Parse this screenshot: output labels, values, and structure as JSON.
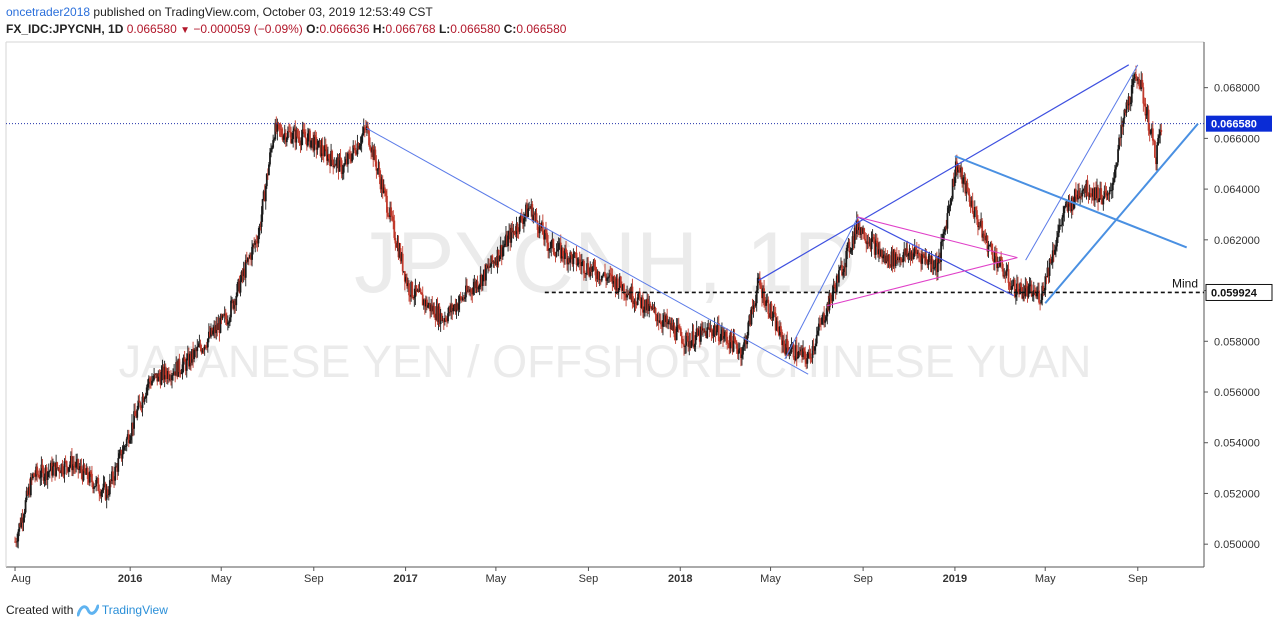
{
  "header": {
    "user": "oncetrader2018",
    "published_text": "published on TradingView.com, October 03, 2019 12:53:49 CST",
    "symbol": "FX_IDC:JPYCNH, 1D",
    "last": "0.066580",
    "change": "−0.000059 (−0.09%)",
    "o_label": "O:",
    "o_value": "0.066636",
    "h_label": "H:",
    "h_value": "0.066768",
    "l_label": "L:",
    "l_value": "0.066580",
    "c_label": "C:",
    "c_value": "0.066580"
  },
  "footer": {
    "created_with": "Created with",
    "brand": "TradingView"
  },
  "colors": {
    "up": "#1b1b1b",
    "down": "#c0392b",
    "trend": "#3f51e0",
    "trend_light": "#5b7be8",
    "channel": "#4a90e2",
    "magenta": "#e040c8",
    "price_line": "#2233aa",
    "price_tag": "#0a2cd6",
    "level_tag": "#111111",
    "watermark": "#ebebeb"
  },
  "chart_data": {
    "type": "line",
    "title": "FX_IDC:JPYCNH, 1D",
    "watermark_symbol": "JPYCNH, 1D",
    "watermark_name": "JAPANESE YEN / OFFSHORE CHINESE YUAN",
    "xlabel": "",
    "ylabel": "",
    "x_ticks": [
      "Aug",
      "2016",
      "May",
      "Sep",
      "2017",
      "May",
      "Sep",
      "2018",
      "May",
      "Sep",
      "2019",
      "May",
      "Sep"
    ],
    "y_ticks": [
      "0.050000",
      "0.052000",
      "0.054000",
      "0.056000",
      "0.058000",
      "0.060000",
      "0.062000",
      "0.064000",
      "0.066000",
      "0.068000"
    ],
    "ylim": [
      0.0491,
      0.0698
    ],
    "grid": false,
    "current_price": 0.06658,
    "current_price_label": "0.066580",
    "level": {
      "value": 0.059924,
      "label": "0.059924",
      "name": "Mind"
    },
    "x": [
      "2015-08-01",
      "2015-08-25",
      "2015-10-15",
      "2015-12-01",
      "2016-01-25",
      "2016-03-15",
      "2016-05-10",
      "2016-06-20",
      "2016-07-10",
      "2016-08-25",
      "2016-10-10",
      "2016-11-10",
      "2016-12-10",
      "2017-01-05",
      "2017-02-20",
      "2017-04-15",
      "2017-06-15",
      "2017-07-10",
      "2017-09-01",
      "2017-10-15",
      "2017-12-05",
      "2018-01-10",
      "2018-02-15",
      "2018-03-25",
      "2018-04-15",
      "2018-05-20",
      "2018-06-20",
      "2018-08-25",
      "2018-10-01",
      "2018-11-10",
      "2018-12-10",
      "2019-01-03",
      "2019-02-10",
      "2019-03-20",
      "2019-04-25",
      "2019-05-25",
      "2019-06-20",
      "2019-07-25",
      "2019-08-15",
      "2019-09-01",
      "2019-09-25",
      "2019-10-03"
    ],
    "values": [
      0.0501,
      0.0527,
      0.0532,
      0.052,
      0.0564,
      0.0571,
      0.059,
      0.0623,
      0.0663,
      0.066,
      0.0648,
      0.0664,
      0.0631,
      0.0601,
      0.0589,
      0.0606,
      0.0633,
      0.0618,
      0.0609,
      0.0602,
      0.0589,
      0.058,
      0.0585,
      0.0576,
      0.0603,
      0.0578,
      0.0573,
      0.0626,
      0.0612,
      0.0615,
      0.061,
      0.065,
      0.062,
      0.0601,
      0.0598,
      0.063,
      0.0641,
      0.0636,
      0.067,
      0.0686,
      0.0653,
      0.06658
    ],
    "annotations": [
      {
        "type": "trendline",
        "from": [
          "2016-11-10",
          0.0664
        ],
        "to": [
          "2018-06-20",
          0.0567
        ],
        "style": "trend_light"
      },
      {
        "type": "trendline",
        "from": [
          "2018-04-15",
          0.0604
        ],
        "to": [
          "2019-08-20",
          0.0689
        ],
        "style": "trend"
      },
      {
        "type": "trendline",
        "from": [
          "2019-01-01",
          0.0653
        ],
        "to": [
          "2019-11-05",
          0.0617
        ],
        "style": "channel"
      },
      {
        "type": "trendline",
        "from": [
          "2019-05-01",
          0.0595
        ],
        "to": [
          "2019-11-20",
          0.06658
        ],
        "style": "channel"
      },
      {
        "type": "trendline",
        "from": [
          "2018-05-20",
          0.0573
        ],
        "to": [
          "2018-08-25",
          0.0629
        ],
        "style": "trend_light"
      },
      {
        "type": "trendline",
        "from": [
          "2019-04-05",
          0.0612
        ],
        "to": [
          "2019-09-01",
          0.0689
        ],
        "style": "trend_light"
      },
      {
        "type": "trendline",
        "from": [
          "2018-08-25",
          0.0629
        ],
        "to": [
          "2019-03-20",
          0.0598
        ],
        "style": "trend"
      },
      {
        "type": "trendline",
        "from": [
          "2018-08-25",
          0.0629
        ],
        "to": [
          "2019-03-25",
          0.0613
        ],
        "style": "magenta"
      },
      {
        "type": "trendline",
        "from": [
          "2018-07-15",
          0.0594
        ],
        "to": [
          "2019-03-25",
          0.0613
        ],
        "style": "magenta"
      }
    ]
  }
}
